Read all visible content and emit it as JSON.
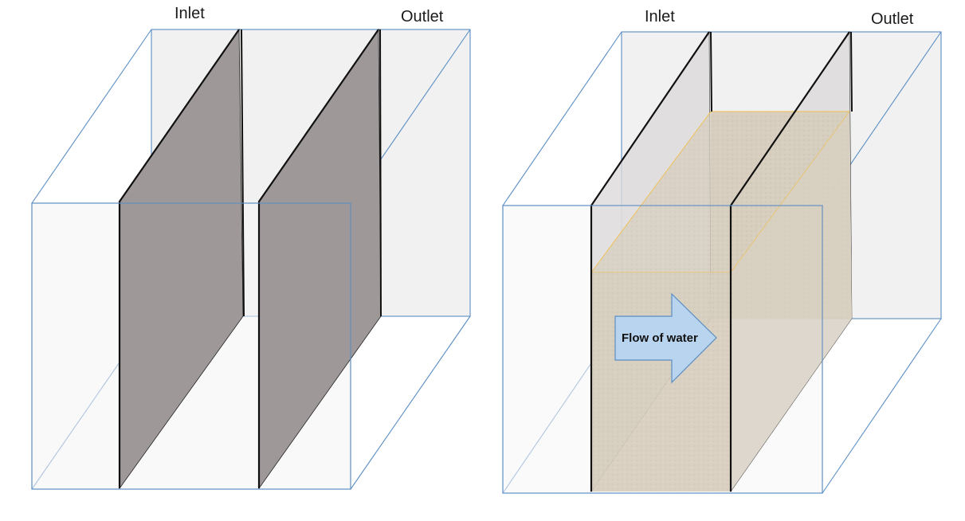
{
  "left_diagram": {
    "inlet_label": "Inlet",
    "outlet_label": "Outlet"
  },
  "right_diagram": {
    "inlet_label": "Inlet",
    "outlet_label": "Outlet",
    "arrow_label": "Flow of water"
  },
  "colors": {
    "box_edge": "#5b8ec4",
    "plate_fill": "#9e9898",
    "water_fill": "#d8cfc0",
    "arrow_fill": "#b8d4ee",
    "arrow_stroke": "#5b8ec4"
  }
}
